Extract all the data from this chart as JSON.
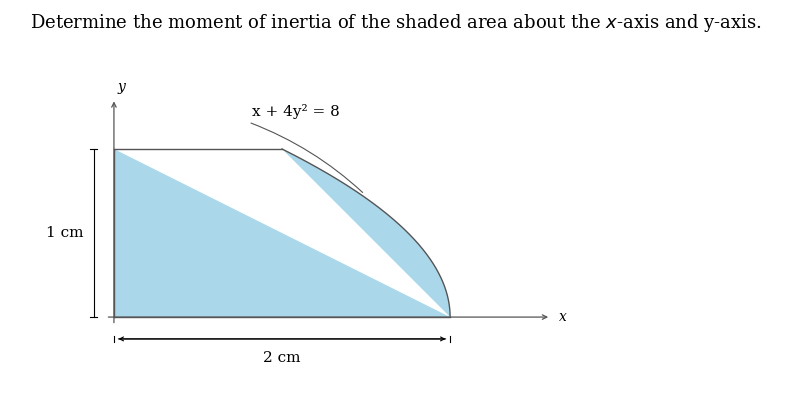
{
  "title": "Determine the moment of inertia of the shaded area about the $x$-axis and y-axis.",
  "title_fontsize": 13,
  "equation_label": "x + 4y² = 8",
  "equation_label_fontsize": 11,
  "dim_label_1cm": "1 cm",
  "dim_label_2cm": "2 cm",
  "dim_fontsize": 11,
  "shaded_color": "#aad8ea",
  "curve_color": "#555555",
  "axis_color": "#555555",
  "background_color": "#ffffff",
  "figsize": [
    7.91,
    4.01
  ],
  "dpi": 100
}
